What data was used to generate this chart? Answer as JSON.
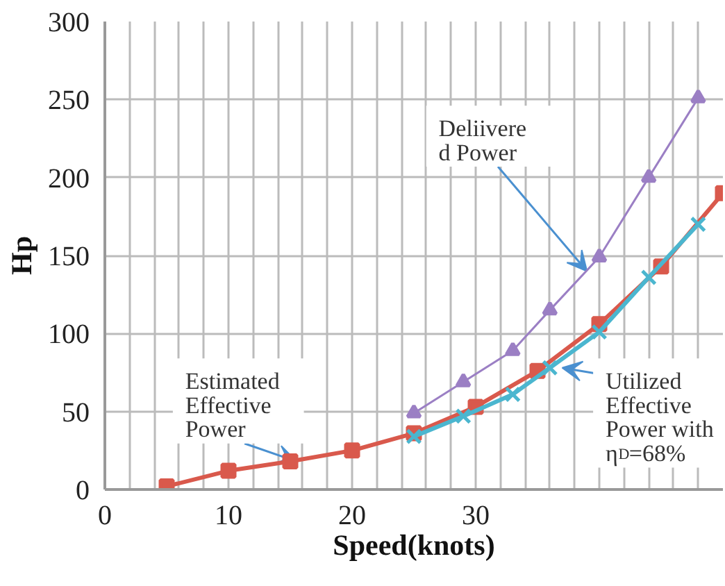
{
  "chart_data": {
    "type": "line",
    "xlabel": "Speed(knots)",
    "ylabel": "Hp",
    "xlim": [
      0,
      50
    ],
    "ylim": [
      0,
      300
    ],
    "xticks": [
      0,
      {
        "value": 2,
        "label": null
      },
      {
        "value": 4,
        "label": null
      },
      {
        "value": 6,
        "label": null
      },
      {
        "value": 8,
        "label": null
      },
      10,
      {
        "value": 12,
        "label": null
      },
      {
        "value": 14,
        "label": null
      },
      {
        "value": 16,
        "label": null
      },
      {
        "value": 18,
        "label": null
      },
      20,
      {
        "value": 22,
        "label": null
      },
      {
        "value": 24,
        "label": null
      },
      {
        "value": 26,
        "label": null
      },
      {
        "value": 28,
        "label": null
      },
      30,
      {
        "value": 32,
        "label": null
      },
      {
        "value": 34,
        "label": null
      },
      {
        "value": 36,
        "label": null
      },
      {
        "value": 38,
        "label": null
      },
      {
        "value": 40,
        "label": null
      },
      {
        "value": 42,
        "label": null
      },
      {
        "value": 44,
        "label": null
      },
      {
        "value": 46,
        "label": null
      },
      {
        "value": 48,
        "label": null
      }
    ],
    "yticks": [
      0,
      50,
      100,
      150,
      200,
      250,
      300
    ],
    "grid": true,
    "line_style": "solid",
    "series": [
      {
        "color": "#d9594c",
        "marker": "square",
        "x": [
          5,
          10,
          15,
          20,
          25,
          30,
          35,
          40,
          45,
          50
        ],
        "values": [
          2,
          12,
          18,
          25,
          36,
          53,
          76,
          106,
          143,
          190
        ]
      },
      {
        "color": "#9b7fc4",
        "marker": "triangle",
        "x": [
          25,
          29,
          33,
          36,
          40,
          44,
          48
        ],
        "values": [
          49,
          69,
          89,
          115,
          149,
          200,
          251
        ]
      },
      {
        "color": "#4bb6cf",
        "marker": "cross",
        "x": [
          25,
          29,
          33,
          36,
          40,
          44,
          48
        ],
        "values": [
          34,
          47,
          61,
          78,
          101,
          136,
          170
        ]
      }
    ],
    "annotations": [
      {
        "text": "Deliivere\nd Power",
        "x": 39,
        "y": 140
      },
      {
        "text": "Estimated\nEffective\nPower",
        "x": 15.5,
        "y": 18
      },
      {
        "text": "Utilized\nEffective\nPower with\nη$_{D}$=68%",
        "x": 37,
        "y": 78
      }
    ]
  }
}
